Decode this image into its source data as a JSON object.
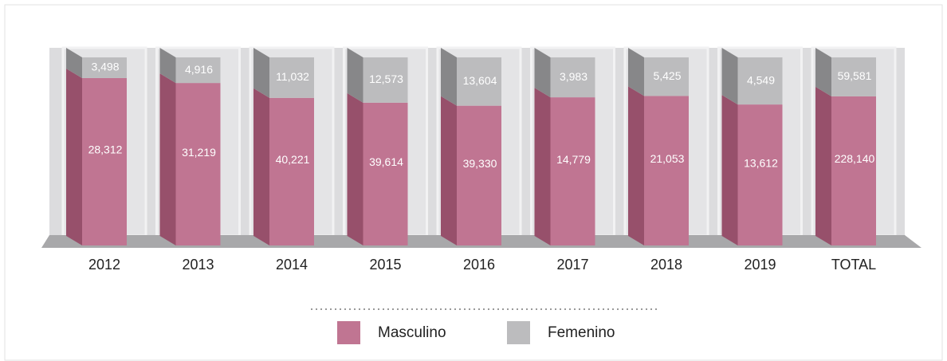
{
  "chart_data": {
    "type": "bar",
    "stacked": "percent",
    "categories": [
      "2012",
      "2013",
      "2014",
      "2015",
      "2016",
      "2017",
      "2018",
      "2019",
      "TOTAL"
    ],
    "series": [
      {
        "name": "Masculino",
        "color": "#c07592",
        "values": [
          28312,
          31219,
          40221,
          39614,
          39330,
          14779,
          21053,
          13612,
          228140
        ],
        "value_labels": [
          "28,312",
          "31,219",
          "40,221",
          "39,614",
          "39,330",
          "14,779",
          "21,053",
          "13,612",
          "228,140"
        ]
      },
      {
        "name": "Femenino",
        "color": "#bcbcbe",
        "values": [
          3498,
          4916,
          11032,
          12573,
          13604,
          3983,
          5425,
          4549,
          59581
        ],
        "value_labels": [
          "3,498",
          "4,916",
          "11,032",
          "12,573",
          "13,604",
          "3,983",
          "5,425",
          "4,549",
          "59,581"
        ]
      }
    ]
  }
}
